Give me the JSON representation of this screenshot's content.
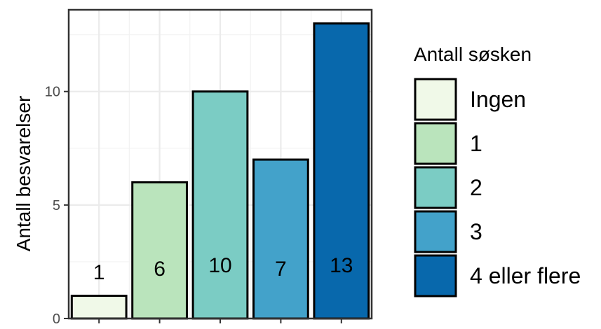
{
  "chart_data": {
    "type": "bar",
    "categories": [
      "Ingen",
      "1",
      "2",
      "3",
      "4 eller flere"
    ],
    "values": [
      1,
      6,
      10,
      7,
      13
    ],
    "data_labels": [
      "1",
      "6",
      "10",
      "7",
      "13"
    ],
    "colors": [
      "#f0f9e8",
      "#bae4bc",
      "#7bccc4",
      "#43a2ca",
      "#0868ac"
    ],
    "title": "",
    "xlabel": "",
    "ylabel": "Antall besvarelser",
    "ylim": [
      0,
      13.6
    ],
    "yticks": [
      0,
      5,
      10
    ],
    "ytick_labels": [
      "0",
      "5",
      "10"
    ],
    "grid": true,
    "legend": {
      "title": "Antall søsken",
      "position": "right",
      "entries": [
        "Ingen",
        "1",
        "2",
        "3",
        "4 eller flere"
      ]
    }
  }
}
